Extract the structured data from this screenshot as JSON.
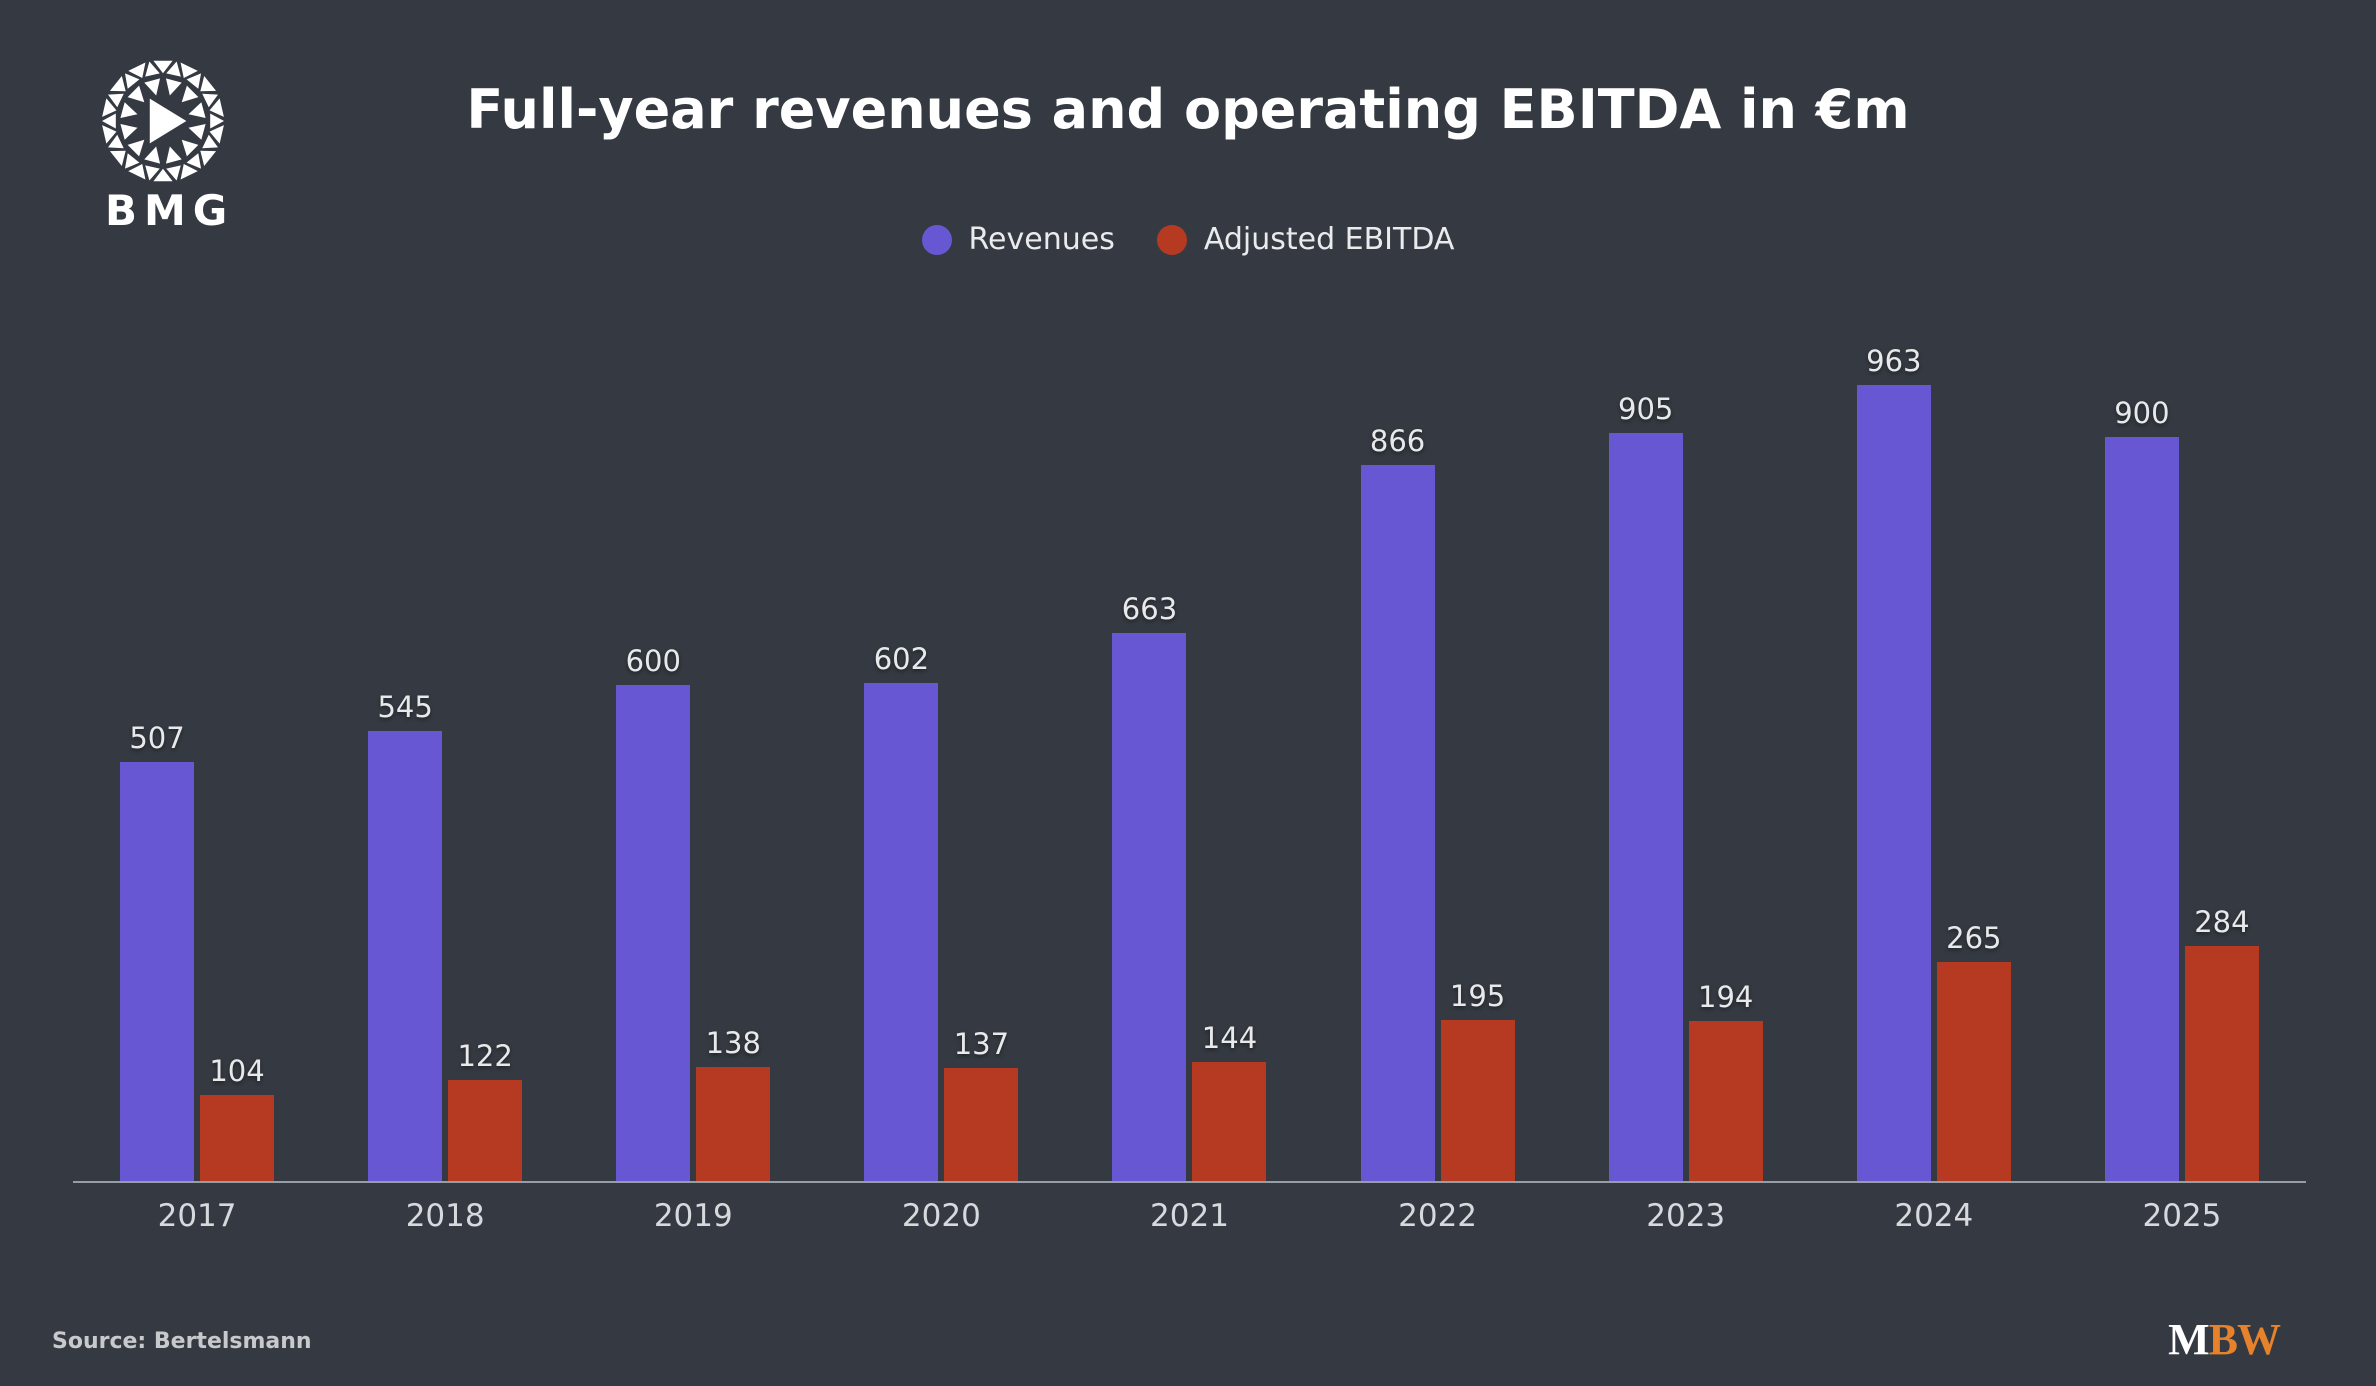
{
  "brand": {
    "name": "BMG"
  },
  "chart_data": {
    "type": "bar",
    "title": "Full-year revenues and operating EBITDA in €m",
    "categories": [
      "2017",
      "2018",
      "2019",
      "2020",
      "2021",
      "2022",
      "2023",
      "2024",
      "2025"
    ],
    "series": [
      {
        "name": "Revenues",
        "color": "#6757d2",
        "values": [
          507,
          545,
          600,
          602,
          663,
          866,
          905,
          963,
          900
        ]
      },
      {
        "name": "Adjusted EBITDA",
        "color": "#b53a21",
        "values": [
          104,
          122,
          138,
          137,
          144,
          195,
          194,
          265,
          284
        ]
      }
    ],
    "xlabel": "",
    "ylabel": "",
    "ylim": [
      0,
      1020
    ],
    "grid": false,
    "legend_position": "top-center",
    "value_labels": true,
    "background_color": "#353a42",
    "axis_line_color": "#979da5"
  },
  "footer": {
    "source": "Source: Bertelsmann",
    "mbw": {
      "m": "M",
      "bw": "BW"
    }
  }
}
